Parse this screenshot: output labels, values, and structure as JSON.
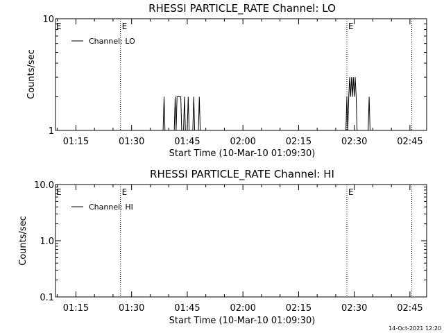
{
  "chart_data": [
    {
      "type": "line",
      "title": "RHESSI PARTICLE_RATE Channel: LO",
      "xlabel": "Start Time (10-Mar-10 01:09:30)",
      "ylabel": "Counts/sec",
      "yscale": "log",
      "ylim": [
        1,
        10
      ],
      "xlim": [
        "01:09:30",
        "02:49:30"
      ],
      "x_ticks": [
        "01:15",
        "01:30",
        "01:45",
        "02:00",
        "02:15",
        "02:30",
        "02:45"
      ],
      "y_ticks": [
        "1",
        "10"
      ],
      "legend": "Channel: LO",
      "legend_position": "top-left",
      "event_lines": [
        {
          "time": "01:27:00",
          "label": "E"
        },
        {
          "time": "02:28:00",
          "label": "E"
        },
        {
          "time": "02:45:30",
          "label": ""
        }
      ],
      "series": [
        {
          "name": "Channel: LO",
          "x": [
            "01:38:30",
            "01:38:45",
            "01:39:00",
            "01:41:30",
            "01:41:45",
            "01:42:00",
            "01:42:15",
            "01:42:30",
            "01:43:15",
            "01:43:30",
            "01:44:00",
            "01:44:15",
            "01:44:30",
            "01:45:00",
            "01:45:15",
            "01:45:30",
            "01:46:30",
            "01:46:45",
            "01:47:00",
            "01:48:00",
            "01:48:15",
            "01:48:30",
            "02:27:45",
            "02:28:00",
            "02:28:15",
            "02:28:30",
            "02:28:45",
            "02:29:00",
            "02:29:15",
            "02:29:30",
            "02:29:45",
            "02:30:00",
            "02:30:15",
            "02:30:30",
            "02:30:45",
            "02:31:00",
            "02:31:15",
            "02:31:30",
            "02:33:45",
            "02:34:00",
            "02:34:15",
            "02:34:30"
          ],
          "y": [
            1,
            2,
            1,
            1,
            2,
            1,
            2,
            2,
            2,
            1,
            1,
            2,
            1,
            1,
            2,
            1,
            1,
            2,
            1,
            1,
            2,
            1,
            1,
            2,
            1,
            2,
            3,
            2,
            3,
            2,
            3,
            2,
            3,
            2,
            1,
            1,
            1,
            1,
            1,
            2,
            1,
            1
          ]
        }
      ]
    },
    {
      "type": "line",
      "title": "RHESSI PARTICLE_RATE Channel: HI",
      "xlabel": "Start Time (10-Mar-10 01:09:30)",
      "ylabel": "Counts/sec",
      "yscale": "log",
      "ylim": [
        0.1,
        10
      ],
      "xlim": [
        "01:09:30",
        "02:49:30"
      ],
      "x_ticks": [
        "01:15",
        "01:30",
        "01:45",
        "02:00",
        "02:15",
        "02:30",
        "02:45"
      ],
      "y_ticks": [
        "0.1",
        "1.0",
        "10.0"
      ],
      "legend": "Channel: HI",
      "legend_position": "top-left",
      "event_lines": [
        {
          "time": "01:27:00",
          "label": "E"
        },
        {
          "time": "02:28:00",
          "label": "E"
        },
        {
          "time": "02:45:30",
          "label": ""
        }
      ],
      "series": [
        {
          "name": "Channel: HI",
          "x": [],
          "y": []
        }
      ]
    }
  ],
  "timestamp": "14-Oct-2021 12:20"
}
